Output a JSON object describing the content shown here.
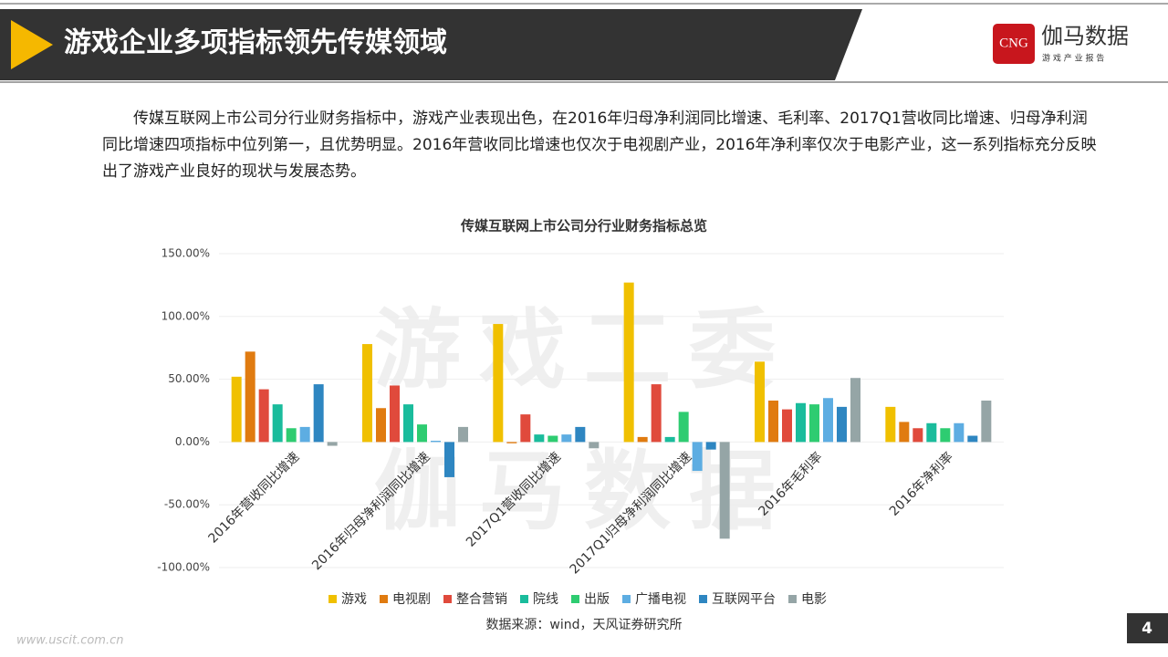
{
  "header": {
    "title": "游戏企业多项指标领先传媒领域",
    "logo_mark": "CNG",
    "logo_name": "伽马数据",
    "logo_sub": "游 戏 产 业 报 告"
  },
  "paragraph": "传媒互联网上市公司分行业财务指标中，游戏产业表现出色，在2016年归母净利润同比增速、毛利率、2017Q1营收同比增速、归母净利润同比增速四项指标中位列第一，且优势明显。2016年营收同比增速也仅次于电视剧产业，2016年净利率仅次于电影产业，这一系列指标充分反映出了游戏产业良好的现状与发展态势。",
  "watermarks": [
    "游戏工委",
    "伽马数据",
    "www.uscit.com.cn"
  ],
  "chart_data": {
    "type": "bar",
    "title": "传媒互联网上市公司分行业财务指标总览",
    "categories": [
      "2016年营收同比增速",
      "2016年归母净利润同比增速",
      "2017Q1营收同比增速",
      "2017Q1归母净利润同比增速",
      "2016年毛利率",
      "2016年净利率"
    ],
    "series": [
      {
        "name": "游戏",
        "color": "#f0c000",
        "values": [
          52,
          78,
          94,
          127,
          64,
          28
        ]
      },
      {
        "name": "电视剧",
        "color": "#e07b10",
        "values": [
          72,
          27,
          -1,
          4,
          33,
          16
        ]
      },
      {
        "name": "整合营销",
        "color": "#e04a3c",
        "values": [
          42,
          45,
          22,
          46,
          26,
          11
        ]
      },
      {
        "name": "院线",
        "color": "#1abc9c",
        "values": [
          30,
          30,
          6,
          4,
          31,
          15
        ]
      },
      {
        "name": "出版",
        "color": "#2ecc71",
        "values": [
          11,
          14,
          5,
          24,
          30,
          11
        ]
      },
      {
        "name": "广播电视",
        "color": "#5dade2",
        "values": [
          12,
          1,
          6,
          -23,
          35,
          15
        ]
      },
      {
        "name": "互联网平台",
        "color": "#2e86c1",
        "values": [
          46,
          -28,
          12,
          -6,
          28,
          5
        ]
      },
      {
        "name": "电影",
        "color": "#95a5a6",
        "values": [
          -3,
          12,
          -5,
          -77,
          51,
          33
        ]
      }
    ],
    "ylim": [
      -100,
      150
    ],
    "yticks": [
      {
        "value": -100,
        "label": "-100.00%"
      },
      {
        "value": -50,
        "label": "-50.00%"
      },
      {
        "value": 0,
        "label": "0.00%"
      },
      {
        "value": 50,
        "label": "50.00%"
      },
      {
        "value": 100,
        "label": "100.00%"
      },
      {
        "value": 150,
        "label": "150.00%"
      }
    ],
    "grid": true,
    "legend": "bottom",
    "source": "数据来源：wind，天风证券研究所"
  },
  "page_number": "4"
}
